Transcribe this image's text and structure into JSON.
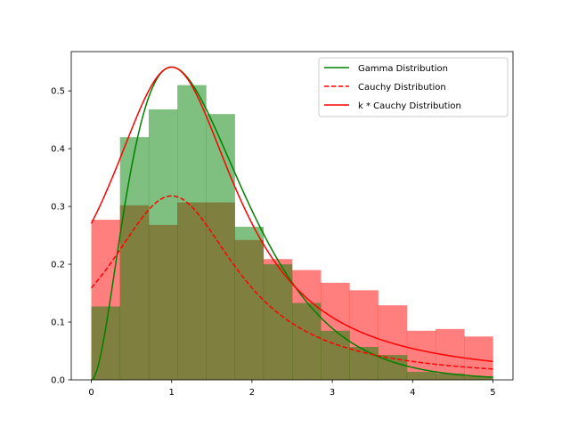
{
  "chart_data": {
    "type": "histogram-with-curves",
    "xlim": [
      -0.25,
      5.25
    ],
    "ylim": [
      0,
      0.568
    ],
    "x_ticks": [
      0,
      1,
      2,
      3,
      4,
      5
    ],
    "x_tick_labels": [
      "0",
      "1",
      "2",
      "3",
      "4",
      "5"
    ],
    "y_ticks": [
      0.0,
      0.1,
      0.2,
      0.3,
      0.4,
      0.5
    ],
    "y_tick_labels": [
      "0.0",
      "0.1",
      "0.2",
      "0.3",
      "0.4",
      "0.5"
    ],
    "legend_position": "top-right",
    "colors": {
      "gamma": "#008000",
      "cauchy": "#ff0000",
      "gamma_hist": "#008000",
      "cauchy_hist": "#ff0000"
    },
    "hist_alpha": 0.5,
    "histograms": [
      {
        "name": "cauchy_hist",
        "bin_edges": [
          0.0,
          0.357,
          0.714,
          1.071,
          1.429,
          1.786,
          2.143,
          2.5,
          2.857,
          3.214,
          3.571,
          3.929,
          4.286,
          4.643,
          5.0
        ],
        "values": [
          0.277,
          0.302,
          0.268,
          0.307,
          0.307,
          0.242,
          0.209,
          0.19,
          0.168,
          0.155,
          0.129,
          0.085,
          0.088,
          0.075
        ]
      },
      {
        "name": "gamma_hist",
        "bin_edges": [
          0.0,
          0.357,
          0.714,
          1.071,
          1.429,
          1.786,
          2.143,
          2.5,
          2.857,
          3.214,
          3.571,
          3.929,
          4.286,
          4.643,
          5.0
        ],
        "values": [
          0.127,
          0.42,
          0.468,
          0.51,
          0.46,
          0.265,
          0.2,
          0.133,
          0.085,
          0.057,
          0.043,
          0.014,
          0.011,
          0.006
        ]
      }
    ],
    "series": [
      {
        "name": "Gamma Distribution",
        "style": "solid",
        "color": "#008000",
        "model": "gamma",
        "shape": 3,
        "scale": 0.5
      },
      {
        "name": "Cauchy Distribution",
        "style": "dashed",
        "color": "#ff0000",
        "model": "cauchy",
        "loc": 1,
        "gamma": 1,
        "k": 1
      },
      {
        "name": "k * Cauchy Distribution",
        "style": "solid",
        "color": "#ff0000",
        "model": "cauchy",
        "loc": 1,
        "gamma": 1,
        "k": 1.7
      }
    ]
  }
}
